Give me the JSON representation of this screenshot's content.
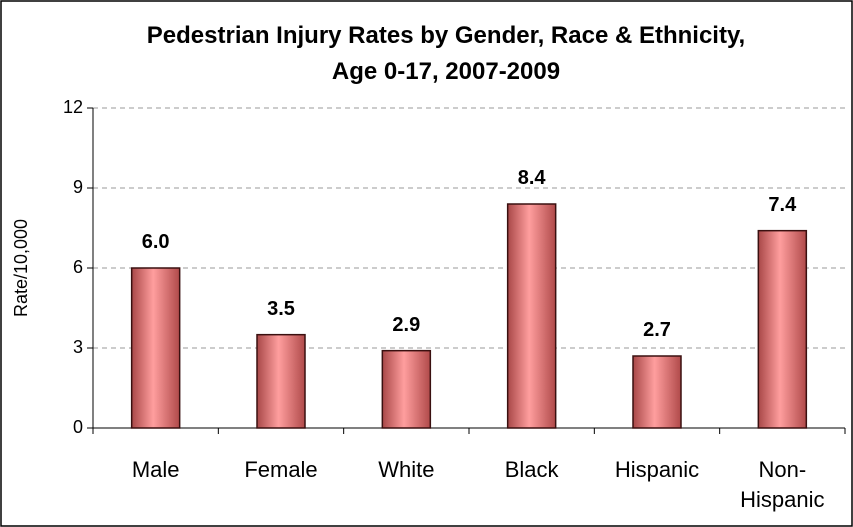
{
  "chart_data": {
    "type": "bar",
    "title": "Pedestrian Injury Rates by Gender, Race & Ethnicity, Age 0-17, 2007-2009",
    "y_label": "Rate/10,000",
    "categories": [
      "Male",
      "Female",
      "White",
      "Black",
      "Hispanic",
      "Non-Hispanic"
    ],
    "values": [
      6.0,
      3.5,
      2.9,
      8.4,
      2.7,
      7.4
    ],
    "value_labels": [
      "6.0",
      "3.5",
      "2.9",
      "8.4",
      "2.7",
      "7.4"
    ],
    "color": "#e06666",
    "ylim": [
      0,
      12
    ],
    "yticks": [
      0,
      3,
      6,
      9,
      12
    ],
    "grid": true
  }
}
